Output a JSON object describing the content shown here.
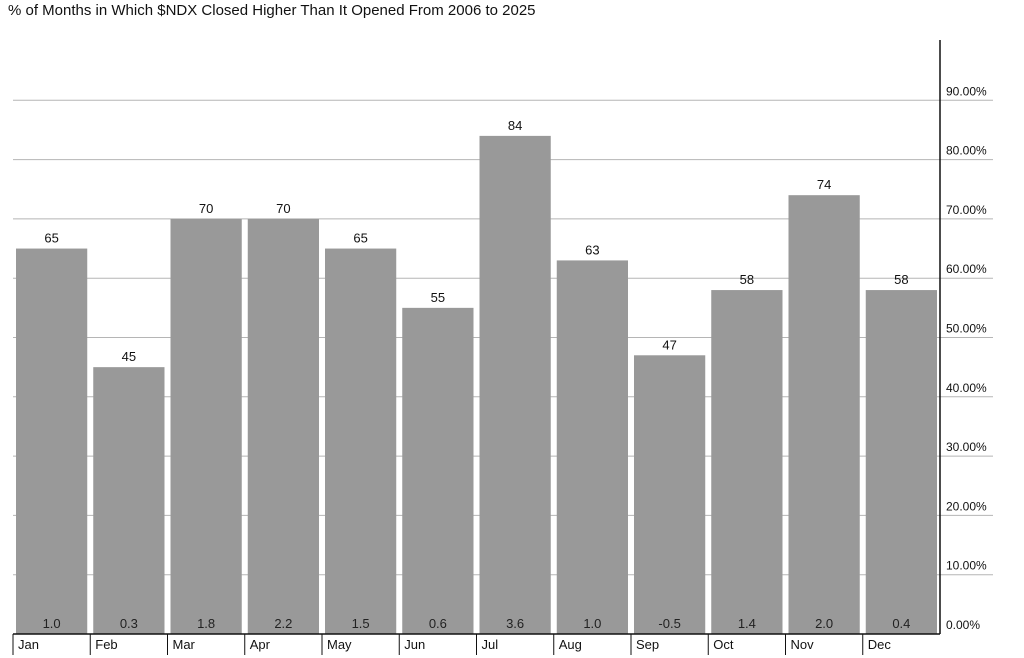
{
  "chart_data": {
    "type": "bar",
    "title": "% of Months in Which $NDX Closed Higher Than It Opened From 2006 to 2025",
    "categories": [
      "Jan",
      "Feb",
      "Mar",
      "Apr",
      "May",
      "Jun",
      "Jul",
      "Aug",
      "Sep",
      "Oct",
      "Nov",
      "Dec"
    ],
    "series": [
      {
        "values": [
          65,
          45,
          70,
          70,
          65,
          55,
          84,
          63,
          47,
          58,
          74,
          58
        ]
      }
    ],
    "bar_base_labels": [
      "1.0",
      "0.3",
      "1.8",
      "2.2",
      "1.5",
      "0.6",
      "3.6",
      "1.0",
      "-0.5",
      "1.4",
      "2.0",
      "0.4"
    ],
    "y_ticks": [
      0,
      10,
      20,
      30,
      40,
      50,
      60,
      70,
      80,
      90
    ],
    "y_tick_labels": [
      "0.00%",
      "10.00%",
      "20.00%",
      "30.00%",
      "40.00%",
      "50.00%",
      "60.00%",
      "70.00%",
      "80.00%",
      "90.00%"
    ],
    "ylim": [
      0,
      100
    ],
    "y_axis_side": "right",
    "grid": true,
    "legend": "none",
    "colors": {
      "bar": "#999999",
      "grid": "#b5b5b5",
      "axis": "#111111",
      "text": "#111111"
    }
  }
}
